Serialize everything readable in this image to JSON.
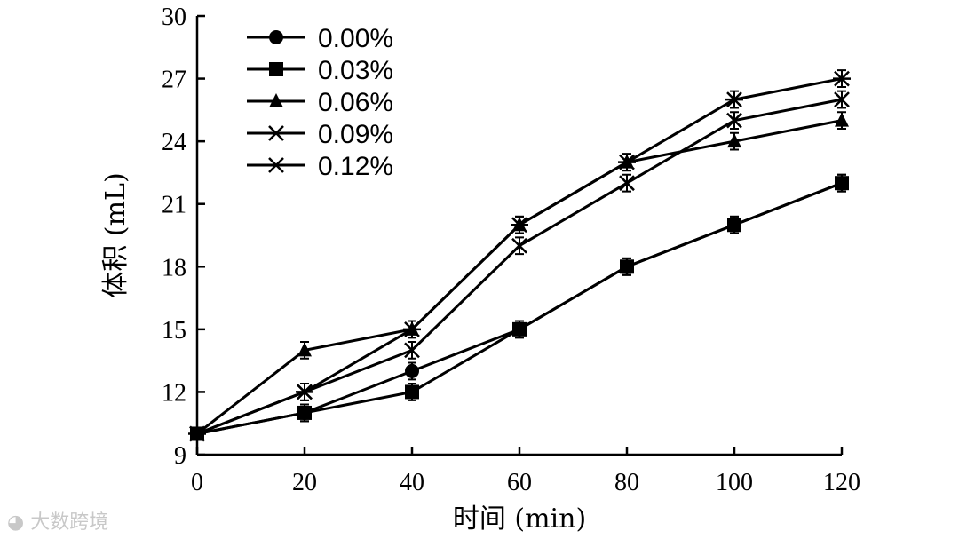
{
  "chart_data": {
    "type": "line",
    "xlabel": "时间 (min)",
    "ylabel": "体积 (mL)",
    "x": [
      0,
      20,
      40,
      60,
      80,
      100,
      120
    ],
    "xlim": [
      0,
      120
    ],
    "ylim": [
      9,
      30
    ],
    "xticks": [
      0,
      20,
      40,
      60,
      80,
      100,
      120
    ],
    "yticks": [
      9,
      12,
      15,
      18,
      21,
      24,
      27,
      30
    ],
    "legend_position": "top-left",
    "grid": false,
    "series": [
      {
        "name": "0.00%",
        "marker": "circle",
        "values": [
          10,
          11,
          13,
          15,
          18,
          20,
          22
        ]
      },
      {
        "name": "0.03%",
        "marker": "square",
        "values": [
          10,
          11,
          12,
          15,
          18,
          20,
          22
        ]
      },
      {
        "name": "0.06%",
        "marker": "triangle",
        "values": [
          10,
          14,
          15,
          20,
          23,
          24,
          25
        ]
      },
      {
        "name": "0.09%",
        "marker": "x",
        "values": [
          10,
          12,
          14,
          19,
          22,
          25,
          26
        ]
      },
      {
        "name": "0.12%",
        "marker": "asterisk",
        "values": [
          10,
          12,
          15,
          20,
          23,
          26,
          27
        ]
      }
    ],
    "error": 0.4
  },
  "watermark": "大数跨境",
  "watermark_icon": "weibo-logo-icon"
}
